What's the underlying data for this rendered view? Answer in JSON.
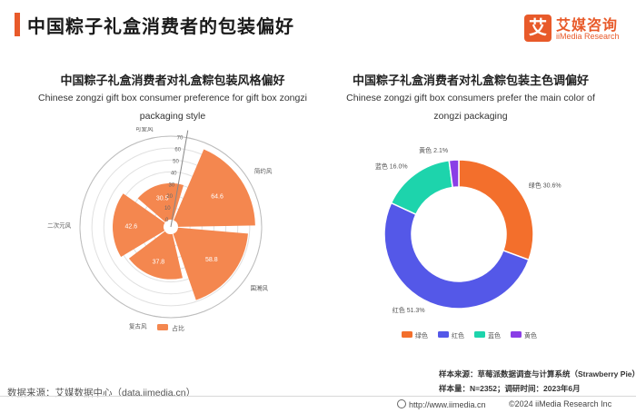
{
  "header": {
    "title": "中国粽子礼盒消费者的包装偏好",
    "accent_color": "#e85a2a"
  },
  "logo": {
    "glyph": "艾",
    "cn": "艾媒咨询",
    "en": "iiMedia Research"
  },
  "left_chart": {
    "title_cn": "中国粽子礼盒消费者对礼盒粽包装风格偏好",
    "subtitle_en": "Chinese zongzi gift box consumer preference for gift box zongzi packaging style"
  },
  "right_chart": {
    "title_cn": "中国粽子礼盒消费者对礼盒粽包装主色调偏好",
    "subtitle_en": "Chinese zongzi gift box consumers prefer the main color of zongzi packaging"
  },
  "chart_data": [
    {
      "type": "bar",
      "subtype": "polar",
      "title": "中国粽子礼盒消费者对礼盒粽包装风格偏好",
      "categories": [
        "简约风",
        "国潮风",
        "复古风",
        "二次元风",
        "可爱风"
      ],
      "series": [
        {
          "name": "占比",
          "values": [
            64.6,
            58.8,
            37.8,
            42.6,
            30.5
          ]
        }
      ],
      "radial_unit": "%",
      "radial_ticks": [
        "0",
        "10",
        "20",
        "30",
        "40",
        "50",
        "60",
        "70"
      ],
      "radial_range": [
        0,
        70
      ],
      "color": "#f4874f",
      "legend_position": "bottom"
    },
    {
      "type": "pie",
      "subtype": "donut",
      "title": "中国粽子礼盒消费者对礼盒粽包装主色调偏好",
      "slices": [
        {
          "label": "绿色",
          "value": 30.6,
          "text": "绿色 30.6%",
          "color": "#f36f2c"
        },
        {
          "label": "红色",
          "value": 51.3,
          "text": "红色 51.3%",
          "color": "#5458e8"
        },
        {
          "label": "蓝色",
          "value": 16.0,
          "text": "蓝色 16.0%",
          "color": "#1dd4ac"
        },
        {
          "label": "黄色",
          "value": 2.1,
          "text": "黄色 2.1%",
          "color": "#8a3ee6"
        }
      ],
      "legend_position": "bottom"
    }
  ],
  "footer": {
    "source": "数据来源：艾媒数据中心（data.iimedia.cn）",
    "sample_source": "样本来源：草莓派数据调查与计算系统（Strawberry Pie）",
    "sample_info": "样本量：N=2352；调研时间：2023年6月",
    "url": "http://www.iimedia.cn",
    "copyright": "©2024  iiMedia Research  Inc"
  }
}
